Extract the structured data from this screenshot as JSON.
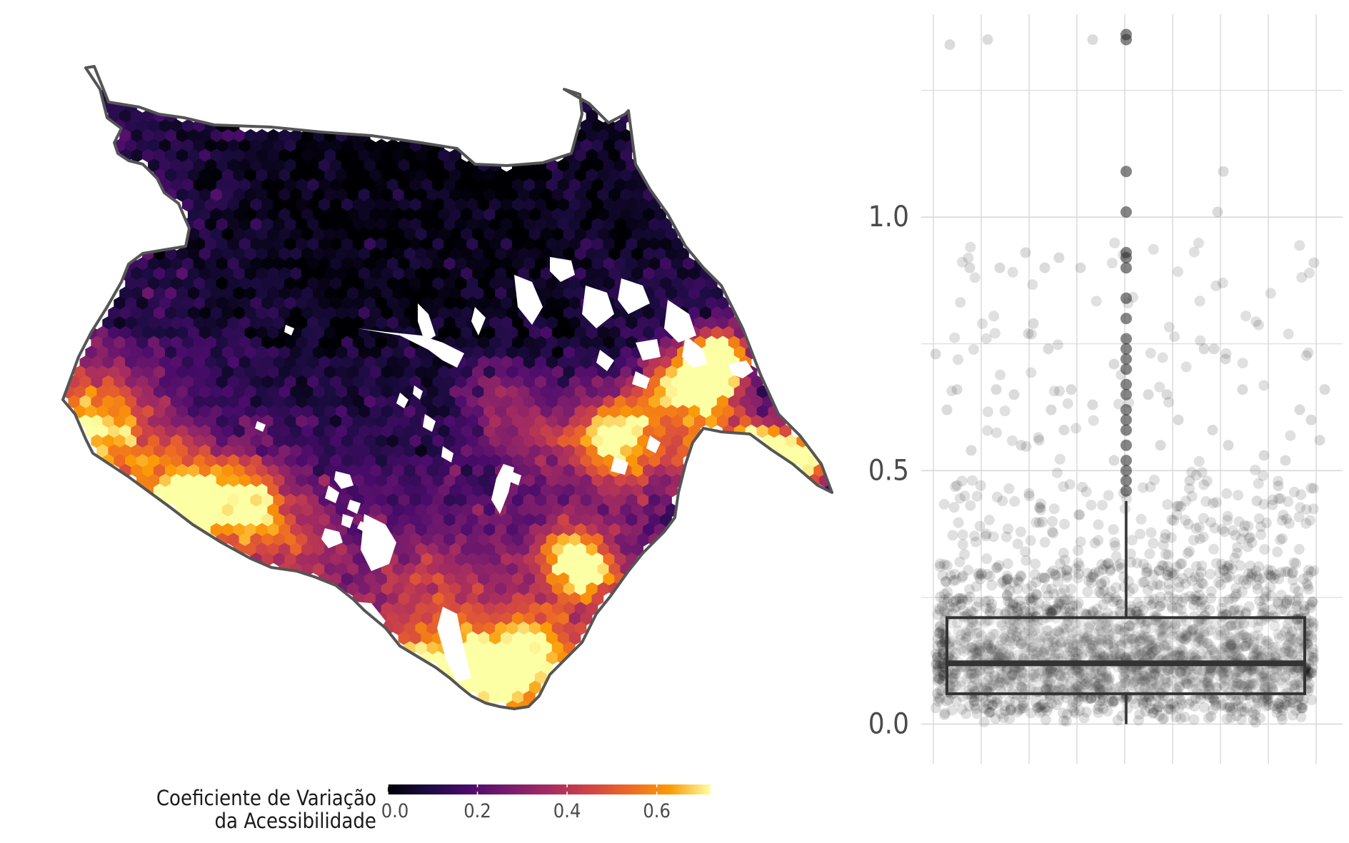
{
  "colors": {
    "colormap": "inferno",
    "boundary": "#555555",
    "grid": "#d9d9d9",
    "box": "#333333",
    "points": "#000000"
  },
  "map": {
    "legend": {
      "title_line1": "Coeficiente de Variação",
      "title_line2": "da Acessibilidade",
      "min": 0.0,
      "max": 0.72,
      "tick_values": [
        0.0,
        0.2,
        0.4,
        0.6
      ],
      "tick_labels": [
        "0.0",
        "0.2",
        "0.4",
        "0.6"
      ]
    }
  },
  "chart_data": [
    {
      "type": "heatmap",
      "description_of_values": "hexagonal grid, coefficient of variation of accessibility",
      "value_range": [
        0.0,
        0.72
      ],
      "regions": [
        {
          "area": "north",
          "typical_value": 0.03
        },
        {
          "area": "center",
          "typical_value": 0.2
        },
        {
          "area": "southwest",
          "typical_value": 0.45
        },
        {
          "area": "south",
          "typical_value": 0.5
        },
        {
          "area": "east coast",
          "typical_value": 0.65
        }
      ]
    },
    {
      "type": "box",
      "ylim": [
        -0.05,
        1.4
      ],
      "y_ticks": [
        0.0,
        0.5,
        1.0
      ],
      "y_tick_labels": [
        "0.0",
        "0.5",
        "1.0"
      ],
      "grid": true,
      "box": {
        "q1": 0.06,
        "median": 0.12,
        "q3": 0.21,
        "whisker_low": 0.0,
        "whisker_high": 0.44
      },
      "outliers": [
        0.46,
        0.48,
        0.5,
        0.52,
        0.55,
        0.58,
        0.6,
        0.62,
        0.65,
        0.67,
        0.7,
        0.72,
        0.74,
        0.76,
        0.8,
        0.84,
        0.9,
        0.92,
        0.93,
        1.01,
        1.09,
        1.35,
        1.36
      ],
      "jitter_points_note": "semi-transparent jittered observations"
    }
  ]
}
